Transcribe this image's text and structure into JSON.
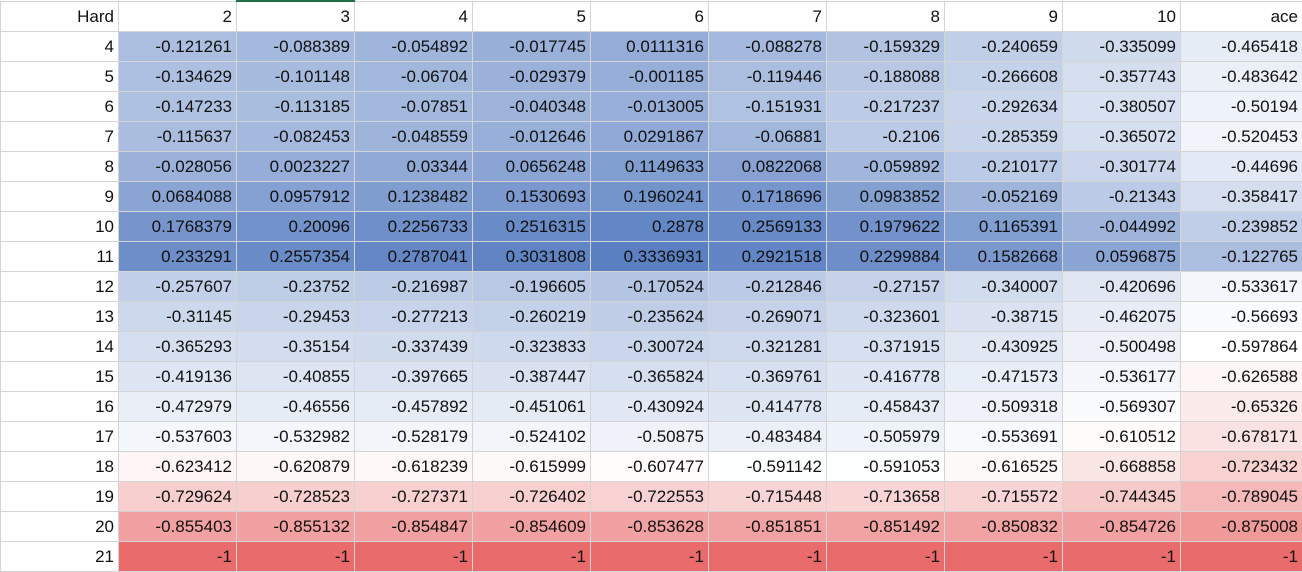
{
  "sheet": {
    "corner_label": "Hard",
    "column_headers": [
      "2",
      "3",
      "4",
      "5",
      "6",
      "7",
      "8",
      "9",
      "10",
      "ace"
    ],
    "rows": [
      {
        "label": "4",
        "values": [
          "-0.121261",
          "-0.088389",
          "-0.054892",
          "-0.017745",
          "0.0111316",
          "-0.088278",
          "-0.159329",
          "-0.240659",
          "-0.335099",
          "-0.465418"
        ],
        "numeric": [
          -0.121261,
          -0.088389,
          -0.054892,
          -0.017745,
          0.0111316,
          -0.088278,
          -0.159329,
          -0.240659,
          -0.335099,
          -0.465418
        ]
      },
      {
        "label": "5",
        "values": [
          "-0.134629",
          "-0.101148",
          "-0.06704",
          "-0.029379",
          "-0.001185",
          "-0.119446",
          "-0.188088",
          "-0.266608",
          "-0.357743",
          "-0.483642"
        ],
        "numeric": [
          -0.134629,
          -0.101148,
          -0.06704,
          -0.029379,
          -0.001185,
          -0.119446,
          -0.188088,
          -0.266608,
          -0.357743,
          -0.483642
        ]
      },
      {
        "label": "6",
        "values": [
          "-0.147233",
          "-0.113185",
          "-0.07851",
          "-0.040348",
          "-0.013005",
          "-0.151931",
          "-0.217237",
          "-0.292634",
          "-0.380507",
          "-0.50194"
        ],
        "numeric": [
          -0.147233,
          -0.113185,
          -0.07851,
          -0.040348,
          -0.013005,
          -0.151931,
          -0.217237,
          -0.292634,
          -0.380507,
          -0.50194
        ]
      },
      {
        "label": "7",
        "values": [
          "-0.115637",
          "-0.082453",
          "-0.048559",
          "-0.012646",
          "0.0291867",
          "-0.06881",
          "-0.2106",
          "-0.285359",
          "-0.365072",
          "-0.520453"
        ],
        "numeric": [
          -0.115637,
          -0.082453,
          -0.048559,
          -0.012646,
          0.0291867,
          -0.06881,
          -0.2106,
          -0.285359,
          -0.365072,
          -0.520453
        ]
      },
      {
        "label": "8",
        "values": [
          "-0.028056",
          "0.0023227",
          "0.03344",
          "0.0656248",
          "0.1149633",
          "0.0822068",
          "-0.059892",
          "-0.210177",
          "-0.301774",
          "-0.44696"
        ],
        "numeric": [
          -0.028056,
          0.0023227,
          0.03344,
          0.0656248,
          0.1149633,
          0.0822068,
          -0.059892,
          -0.210177,
          -0.301774,
          -0.44696
        ]
      },
      {
        "label": "9",
        "values": [
          "0.0684088",
          "0.0957912",
          "0.1238482",
          "0.1530693",
          "0.1960241",
          "0.1718696",
          "0.0983852",
          "-0.052169",
          "-0.21343",
          "-0.358417"
        ],
        "numeric": [
          0.0684088,
          0.0957912,
          0.1238482,
          0.1530693,
          0.1960241,
          0.1718696,
          0.0983852,
          -0.052169,
          -0.21343,
          -0.358417
        ]
      },
      {
        "label": "10",
        "values": [
          "0.1768379",
          "0.20096",
          "0.2256733",
          "0.2516315",
          "0.2878",
          "0.2569133",
          "0.1979622",
          "0.1165391",
          "-0.044992",
          "-0.239852"
        ],
        "numeric": [
          0.1768379,
          0.20096,
          0.2256733,
          0.2516315,
          0.2878,
          0.2569133,
          0.1979622,
          0.1165391,
          -0.044992,
          -0.239852
        ]
      },
      {
        "label": "11",
        "values": [
          "0.233291",
          "0.2557354",
          "0.2787041",
          "0.3031808",
          "0.3336931",
          "0.2921518",
          "0.2299884",
          "0.1582668",
          "0.0596875",
          "-0.122765"
        ],
        "numeric": [
          0.233291,
          0.2557354,
          0.2787041,
          0.3031808,
          0.3336931,
          0.2921518,
          0.2299884,
          0.1582668,
          0.0596875,
          -0.122765
        ]
      },
      {
        "label": "12",
        "values": [
          "-0.257607",
          "-0.23752",
          "-0.216987",
          "-0.196605",
          "-0.170524",
          "-0.212846",
          "-0.27157",
          "-0.340007",
          "-0.420696",
          "-0.533617"
        ],
        "numeric": [
          -0.257607,
          -0.23752,
          -0.216987,
          -0.196605,
          -0.170524,
          -0.212846,
          -0.27157,
          -0.340007,
          -0.420696,
          -0.533617
        ]
      },
      {
        "label": "13",
        "values": [
          "-0.31145",
          "-0.29453",
          "-0.277213",
          "-0.260219",
          "-0.235624",
          "-0.269071",
          "-0.323601",
          "-0.38715",
          "-0.462075",
          "-0.56693"
        ],
        "numeric": [
          -0.31145,
          -0.29453,
          -0.277213,
          -0.260219,
          -0.235624,
          -0.269071,
          -0.323601,
          -0.38715,
          -0.462075,
          -0.56693
        ]
      },
      {
        "label": "14",
        "values": [
          "-0.365293",
          "-0.35154",
          "-0.337439",
          "-0.323833",
          "-0.300724",
          "-0.321281",
          "-0.371915",
          "-0.430925",
          "-0.500498",
          "-0.597864"
        ],
        "numeric": [
          -0.365293,
          -0.35154,
          -0.337439,
          -0.323833,
          -0.300724,
          -0.321281,
          -0.371915,
          -0.430925,
          -0.500498,
          -0.597864
        ]
      },
      {
        "label": "15",
        "values": [
          "-0.419136",
          "-0.40855",
          "-0.397665",
          "-0.387447",
          "-0.365824",
          "-0.369761",
          "-0.416778",
          "-0.471573",
          "-0.536177",
          "-0.626588"
        ],
        "numeric": [
          -0.419136,
          -0.40855,
          -0.397665,
          -0.387447,
          -0.365824,
          -0.369761,
          -0.416778,
          -0.471573,
          -0.536177,
          -0.626588
        ]
      },
      {
        "label": "16",
        "values": [
          "-0.472979",
          "-0.46556",
          "-0.457892",
          "-0.451061",
          "-0.430924",
          "-0.414778",
          "-0.458437",
          "-0.509318",
          "-0.569307",
          "-0.65326"
        ],
        "numeric": [
          -0.472979,
          -0.46556,
          -0.457892,
          -0.451061,
          -0.430924,
          -0.414778,
          -0.458437,
          -0.509318,
          -0.569307,
          -0.65326
        ]
      },
      {
        "label": "17",
        "values": [
          "-0.537603",
          "-0.532982",
          "-0.528179",
          "-0.524102",
          "-0.50875",
          "-0.483484",
          "-0.505979",
          "-0.553691",
          "-0.610512",
          "-0.678171"
        ],
        "numeric": [
          -0.537603,
          -0.532982,
          -0.528179,
          -0.524102,
          -0.50875,
          -0.483484,
          -0.505979,
          -0.553691,
          -0.610512,
          -0.678171
        ]
      },
      {
        "label": "18",
        "values": [
          "-0.623412",
          "-0.620879",
          "-0.618239",
          "-0.615999",
          "-0.607477",
          "-0.591142",
          "-0.591053",
          "-0.616525",
          "-0.668858",
          "-0.723432"
        ],
        "numeric": [
          -0.623412,
          -0.620879,
          -0.618239,
          -0.615999,
          -0.607477,
          -0.591142,
          -0.591053,
          -0.616525,
          -0.668858,
          -0.723432
        ]
      },
      {
        "label": "19",
        "values": [
          "-0.729624",
          "-0.728523",
          "-0.727371",
          "-0.726402",
          "-0.722553",
          "-0.715448",
          "-0.713658",
          "-0.715572",
          "-0.744345",
          "-0.789045"
        ],
        "numeric": [
          -0.729624,
          -0.728523,
          -0.727371,
          -0.726402,
          -0.722553,
          -0.715448,
          -0.713658,
          -0.715572,
          -0.744345,
          -0.789045
        ]
      },
      {
        "label": "20",
        "values": [
          "-0.855403",
          "-0.855132",
          "-0.854847",
          "-0.854609",
          "-0.853628",
          "-0.851851",
          "-0.851492",
          "-0.850832",
          "-0.854726",
          "-0.875008"
        ],
        "numeric": [
          -0.855403,
          -0.855132,
          -0.854847,
          -0.854609,
          -0.853628,
          -0.851851,
          -0.851492,
          -0.850832,
          -0.854726,
          -0.875008
        ]
      },
      {
        "label": "21",
        "values": [
          "-1",
          "-1",
          "-1",
          "-1",
          "-1",
          "-1",
          "-1",
          "-1",
          "-1",
          "-1"
        ],
        "numeric": [
          -1,
          -1,
          -1,
          -1,
          -1,
          -1,
          -1,
          -1,
          -1,
          -1
        ]
      }
    ]
  },
  "color_scale": {
    "min_value": -1,
    "mid_value": -0.6,
    "max_value": 0.3336931,
    "min_color": "#e96b6b",
    "mid_color": "#ffffff",
    "max_color": "#5b80c2"
  },
  "grid_color": "#d4d4d4",
  "selection_color": "#1e7145"
}
